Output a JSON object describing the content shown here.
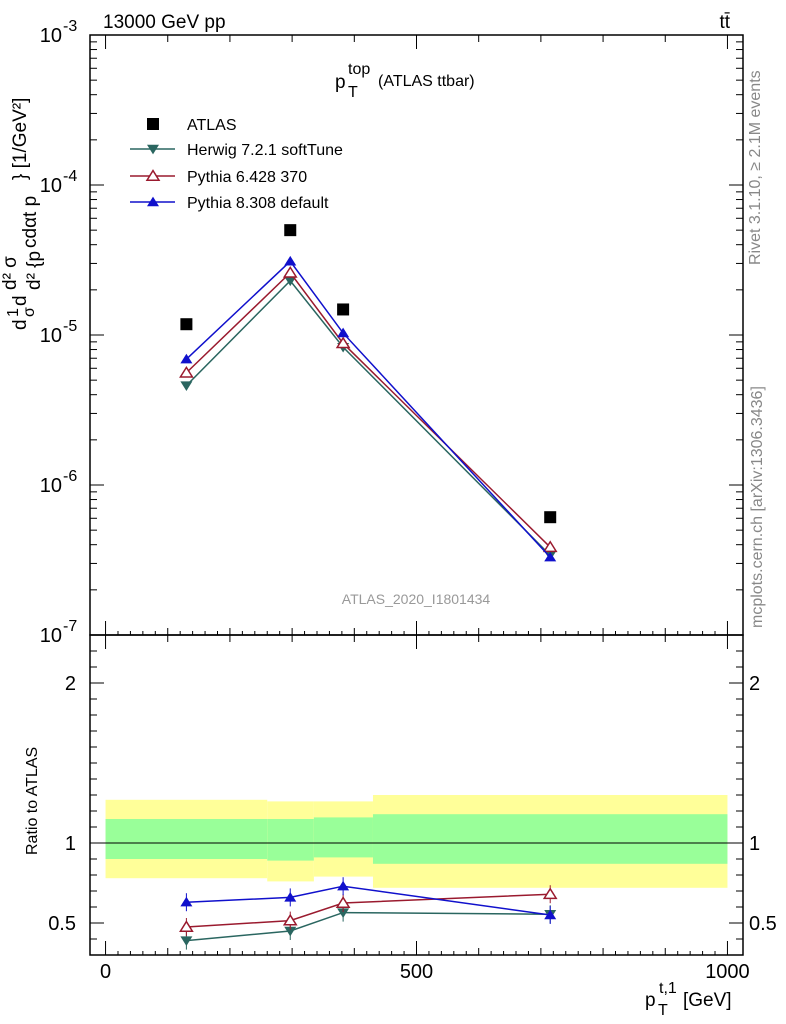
{
  "header": {
    "process": "13000 GeV pp",
    "final_state": "tt̄"
  },
  "plot_title": {
    "main": "p",
    "sub": "T",
    "sup": "top",
    "suffix": "(ATLAS ttbar)"
  },
  "side_labels": {
    "rivet": "Rivet 3.1.10, ≥ 2.1M events",
    "mcplots": "mcplots.cern.ch [arXiv:1306.3436]"
  },
  "watermark": "ATLAS_2020_I1801434",
  "axis_labels": {
    "ylabel_upper": "d²σ^fid / d²{p_T^t,1 cdαt p_T^t,2} [1/GeV²]",
    "ylabel_ratio": "Ratio to ATLAS",
    "xlabel": "p_T^t,1 [GeV]",
    "xunit": "[GeV]"
  },
  "colors": {
    "atlas": "#000000",
    "herwig": "#2a6660",
    "pythia6": "#9a1a2e",
    "pythia8": "#1010cc",
    "band_outer": "#ffff99",
    "band_inner": "#99ff99"
  },
  "chart_data": {
    "type": "line",
    "title": "p_T^top (ATLAS ttbar)",
    "xlabel": "p_T^t,1 [GeV]",
    "ylabel": "d²σ^fid/d²{p_T^t,1 cdαt p_T^t,2} [1/GeV²]",
    "xlim": [
      -25,
      1025
    ],
    "ylim": [
      1e-07,
      0.001
    ],
    "yscale": "log",
    "ratio_ylim": [
      0.3,
      2.3
    ],
    "x": [
      130,
      297,
      382,
      715
    ],
    "ytick_labels": [
      "10",
      "10",
      "10",
      "10",
      "10"
    ],
    "ytick_exponents": [
      "-7",
      "-6",
      "-5",
      "-4",
      "-3"
    ],
    "xtick_labels": [
      "0",
      "500",
      "1000"
    ],
    "ratio_ytick_labels": [
      "0.5",
      "1",
      "2"
    ],
    "series": [
      {
        "name": "ATLAS",
        "marker": "square",
        "values": [
          1.18e-05,
          5e-05,
          1.48e-05,
          6.1e-07
        ]
      },
      {
        "name": "Herwig 7.2.1 softTune",
        "marker": "triangle-down",
        "values": [
          4.6e-06,
          2.3e-05,
          8.3e-06,
          3.4e-07
        ],
        "ratio": [
          0.39,
          0.45,
          0.565,
          0.555
        ]
      },
      {
        "name": "Pythia 6.428 370",
        "marker": "triangle-up-open",
        "values": [
          5.6e-06,
          2.6e-05,
          8.8e-06,
          3.85e-07
        ],
        "ratio": [
          0.475,
          0.515,
          0.625,
          0.68
        ]
      },
      {
        "name": "Pythia 8.308 default",
        "marker": "triangle-up",
        "values": [
          6.9e-06,
          3.1e-05,
          1.03e-05,
          3.3e-07
        ],
        "ratio": [
          0.63,
          0.66,
          0.73,
          0.55
        ]
      }
    ],
    "ratio_bands": [
      {
        "xlo": 0,
        "xhi": 260,
        "outer_lo": 0.78,
        "outer_hi": 1.27,
        "inner_lo": 0.9,
        "inner_hi": 1.15
      },
      {
        "xlo": 260,
        "xhi": 335,
        "outer_lo": 0.76,
        "outer_hi": 1.26,
        "inner_lo": 0.89,
        "inner_hi": 1.15
      },
      {
        "xlo": 335,
        "xhi": 430,
        "outer_lo": 0.79,
        "outer_hi": 1.26,
        "inner_lo": 0.91,
        "inner_hi": 1.16
      },
      {
        "xlo": 430,
        "xhi": 1000,
        "outer_lo": 0.72,
        "outer_hi": 1.3,
        "inner_lo": 0.87,
        "inner_hi": 1.18
      }
    ]
  }
}
